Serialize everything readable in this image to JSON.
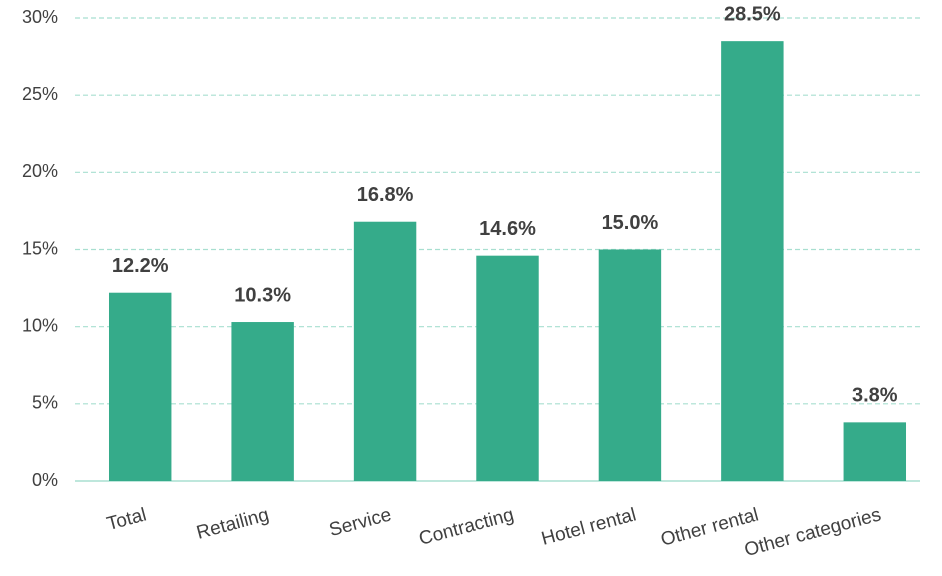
{
  "chart_data": {
    "type": "bar",
    "categories": [
      "Total",
      "Retailing",
      "Service",
      "Contracting",
      "Hotel rental",
      "Other rental",
      "Other categories"
    ],
    "values": [
      12.2,
      10.3,
      16.8,
      14.6,
      15.0,
      28.5,
      3.8
    ],
    "value_labels": [
      "12.2%",
      "10.3%",
      "16.8%",
      "14.6%",
      "15.0%",
      "28.5%",
      "3.8%"
    ],
    "color": "#35ab8a",
    "ylim": [
      0,
      30
    ],
    "yticks": [
      {
        "value": 0,
        "label": "0%"
      },
      {
        "value": 5,
        "label": "5%"
      },
      {
        "value": 10,
        "label": "10%"
      },
      {
        "value": 15,
        "label": "15%"
      },
      {
        "value": 20,
        "label": "20%"
      },
      {
        "value": 25,
        "label": "25%"
      },
      {
        "value": 30,
        "label": "30%"
      }
    ],
    "grid": true
  }
}
